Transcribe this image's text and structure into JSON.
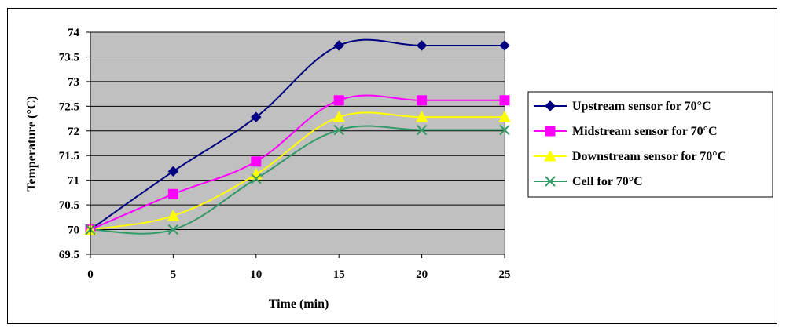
{
  "chart_data": {
    "type": "line",
    "title": "",
    "xlabel": "Time (min)",
    "ylabel": "Temperature (°C)",
    "x": [
      0,
      5,
      10,
      15,
      20,
      25
    ],
    "xlim": [
      0,
      25
    ],
    "ylim": [
      69.5,
      74
    ],
    "xticks": [
      "0",
      "5",
      "10",
      "15",
      "20",
      "25"
    ],
    "yticks": [
      "69.5",
      "70",
      "70.5",
      "71",
      "71.5",
      "72",
      "72.5",
      "73",
      "73.5",
      "74"
    ],
    "grid": "horizontal",
    "legend_position": "right",
    "plot_background": "#c0c0c0",
    "series": [
      {
        "name": "Upstream sensor for 70°C",
        "values": [
          70.0,
          71.18,
          72.28,
          73.73,
          73.73,
          73.73
        ],
        "color": "#000080",
        "marker": "diamond"
      },
      {
        "name": "Midstream sensor for 70°C",
        "values": [
          70.0,
          70.72,
          71.38,
          72.62,
          72.62,
          72.62
        ],
        "color": "#ff00ff",
        "marker": "square"
      },
      {
        "name": "Downstream sensor for 70°C",
        "values": [
          70.0,
          70.28,
          71.12,
          72.28,
          72.28,
          72.28
        ],
        "color": "#ffff00",
        "marker": "triangle"
      },
      {
        "name": "Cell for 70°C",
        "values": [
          70.0,
          70.0,
          71.03,
          72.02,
          72.02,
          72.02
        ],
        "color": "#339966",
        "marker": "x"
      }
    ]
  }
}
